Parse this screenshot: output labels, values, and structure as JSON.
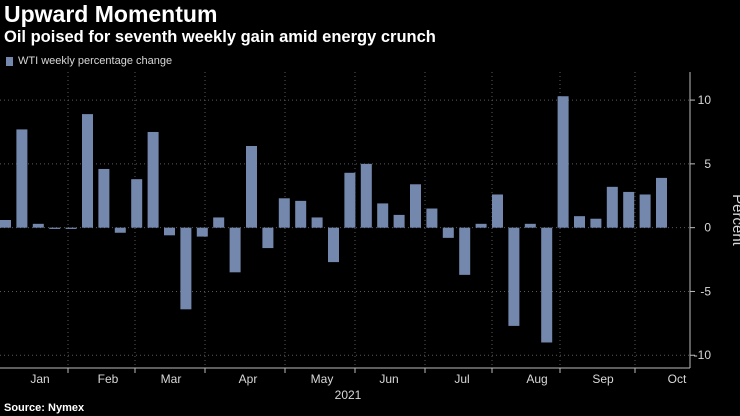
{
  "header": {
    "title": "Upward Momentum",
    "subtitle": "Oil poised for seventh weekly gain amid energy crunch"
  },
  "footer": {
    "source": "Source: Nymex"
  },
  "colors": {
    "bar": "#7488ad",
    "background": "#000000",
    "grid": "#5a5a5a",
    "text": "#d8d8d8"
  },
  "chart_data": {
    "type": "bar",
    "legend": {
      "position": "top-left",
      "entries": [
        "WTI weekly percentage change"
      ]
    },
    "series": [
      {
        "name": "WTI weekly percentage change",
        "values": [
          0.6,
          7.7,
          0.3,
          -0.1,
          -0.1,
          8.9,
          4.6,
          -0.4,
          3.8,
          7.5,
          -0.6,
          -6.4,
          -0.7,
          0.8,
          -3.5,
          6.4,
          -1.6,
          2.3,
          2.1,
          0.8,
          -2.7,
          4.3,
          5.0,
          1.9,
          1.0,
          3.4,
          1.5,
          -0.8,
          -3.7,
          0.3,
          2.6,
          -7.7,
          0.3,
          -9.0,
          10.3,
          0.9,
          0.7,
          3.2,
          2.8,
          2.6,
          3.9
        ]
      }
    ],
    "x_tick_labels": [
      "Jan",
      "Feb",
      "Mar",
      "Apr",
      "May",
      "Jun",
      "Jul",
      "Aug",
      "Sep",
      "Oct"
    ],
    "x_year_label": "2021",
    "ylabel": "Percent",
    "ylim": [
      -11,
      12.2
    ],
    "yticks": [
      10,
      5,
      0,
      -5,
      -10
    ],
    "grid": "dashed vertical gridlines at month boundaries; dashed horizontal gridlines at y ticks",
    "y_axis_side": "right"
  }
}
